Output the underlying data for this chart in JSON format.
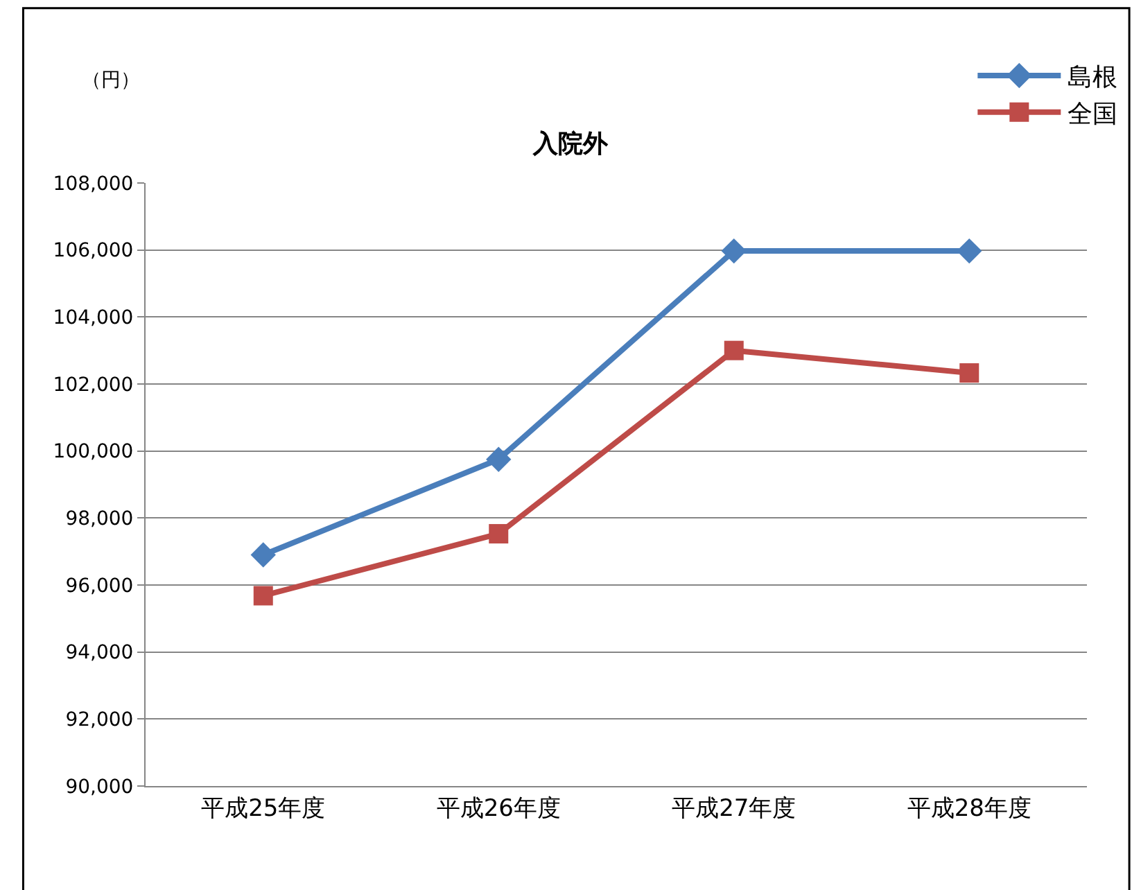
{
  "chart_data": {
    "type": "line",
    "title": "入院外",
    "ylabel": "（円）",
    "categories": [
      "平成25年度",
      "平成26年度",
      "平成27年度",
      "平成28年度"
    ],
    "series": [
      {
        "name": "島根",
        "color": "#4a7ebb",
        "marker": "diamond",
        "values": [
          96900,
          99750,
          105970,
          105970
        ]
      },
      {
        "name": "全国",
        "color": "#be4b48",
        "marker": "square",
        "values": [
          95680,
          97530,
          103000,
          102330
        ]
      }
    ],
    "ylim": [
      90000,
      108000
    ],
    "yticks": [
      {
        "value": 90000,
        "label": "90,000"
      },
      {
        "value": 92000,
        "label": "92,000"
      },
      {
        "value": 94000,
        "label": "94,000"
      },
      {
        "value": 96000,
        "label": "96,000"
      },
      {
        "value": 98000,
        "label": "98,000"
      },
      {
        "value": 100000,
        "label": "100,000"
      },
      {
        "value": 102000,
        "label": "102,000"
      },
      {
        "value": 104000,
        "label": "104,000"
      },
      {
        "value": 106000,
        "label": "106,000"
      },
      {
        "value": 108000,
        "label": "108,000"
      }
    ],
    "grid": "y",
    "legend": "top right",
    "line_style": "solid"
  }
}
